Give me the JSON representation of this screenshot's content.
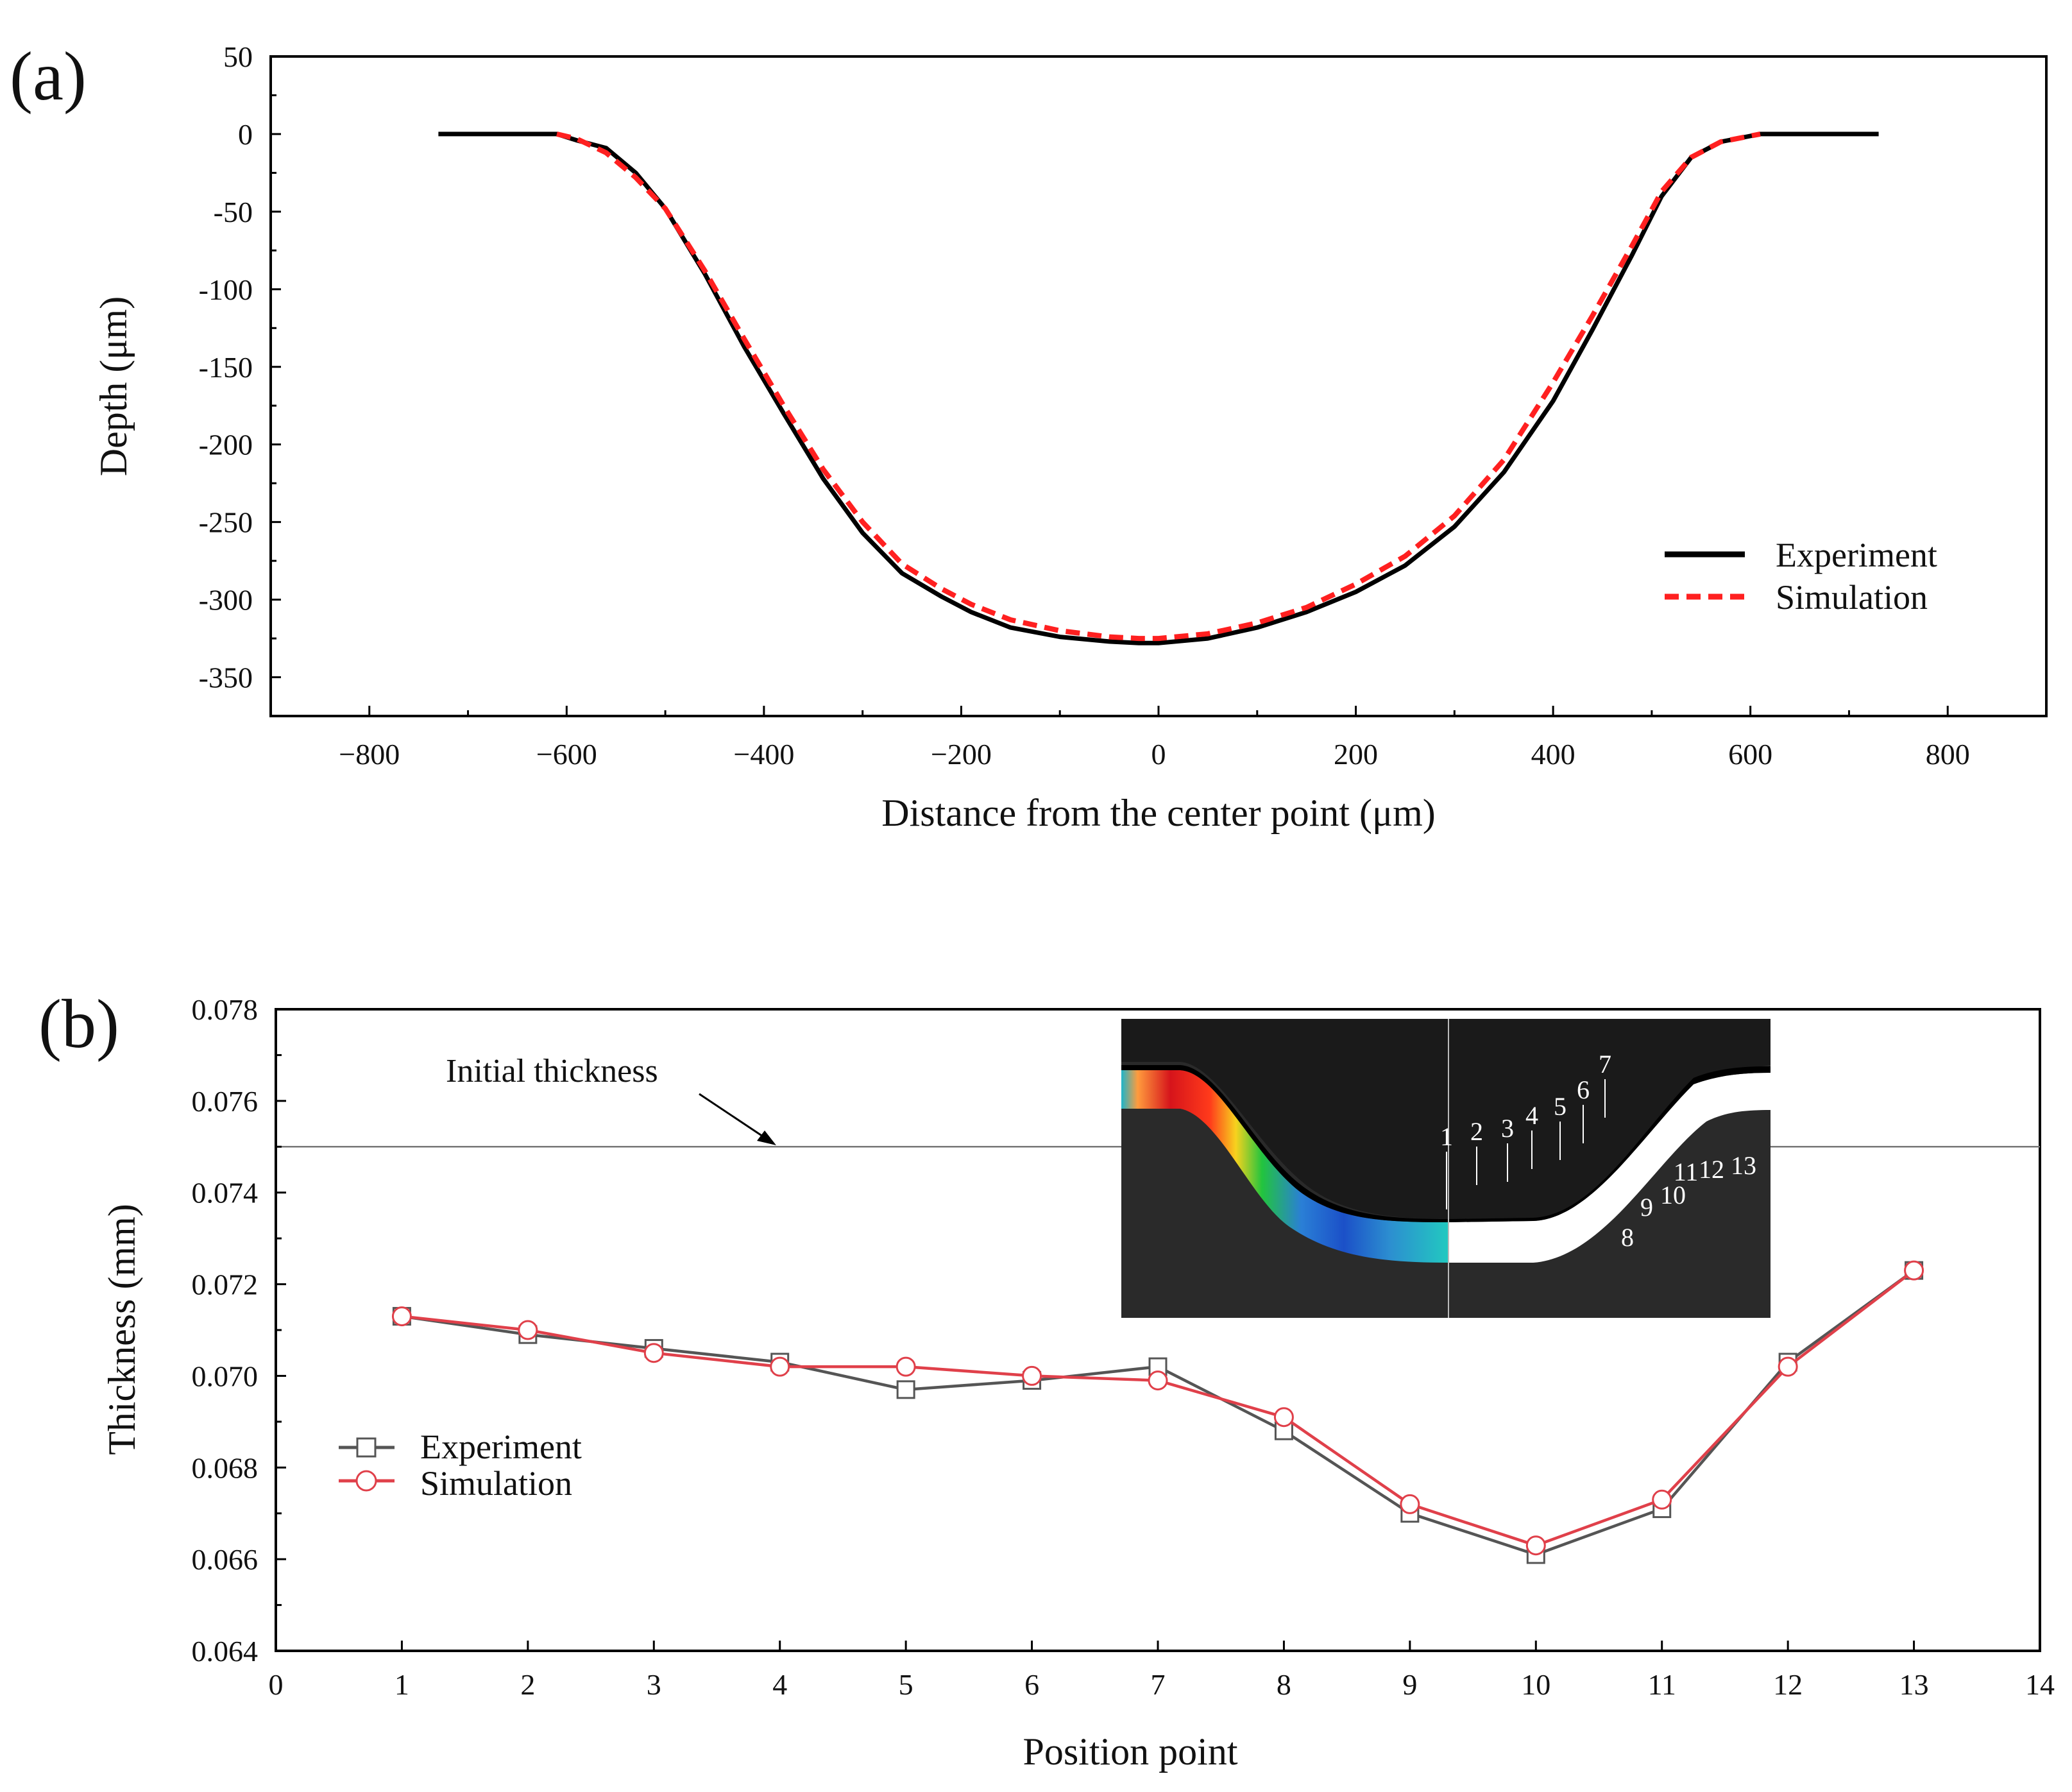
{
  "panel_a": {
    "label": "(a)",
    "xlabel": "Distance from the center point (μm)",
    "ylabel": "Depth (μm)",
    "legend": [
      "Experiment",
      "Simulation"
    ]
  },
  "panel_b": {
    "label": "(b)",
    "xlabel": "Position point",
    "ylabel": "Thickness (mm)",
    "legend": [
      "Experiment",
      "Simulation"
    ],
    "annotation": "Initial thickness",
    "inset_labels": [
      "1",
      "2",
      "3",
      "4",
      "5",
      "6",
      "7",
      "8",
      "9",
      "10",
      "11",
      "12",
      "13"
    ]
  },
  "chart_data": [
    {
      "type": "line",
      "xlabel": "Distance from the center point (μm)",
      "ylabel": "Depth (μm)",
      "xlim": [
        -900,
        900
      ],
      "ylim": [
        -375,
        50
      ],
      "x_ticks": [
        -800,
        -600,
        -400,
        -200,
        0,
        200,
        400,
        600,
        800
      ],
      "y_ticks": [
        50,
        0,
        -50,
        -100,
        -150,
        -200,
        -250,
        -300,
        -350
      ],
      "grid": false,
      "legend_position": "bottom-right",
      "series": [
        {
          "name": "Experiment",
          "color": "#000000",
          "style": "solid",
          "x": [
            -730,
            -650,
            -610,
            -590,
            -560,
            -530,
            -500,
            -460,
            -420,
            -380,
            -340,
            -300,
            -260,
            -220,
            -190,
            -150,
            -100,
            -50,
            -20,
            0,
            50,
            100,
            150,
            200,
            250,
            300,
            350,
            400,
            440,
            480,
            510,
            540,
            570,
            610,
            650,
            700,
            730
          ],
          "y": [
            0,
            0,
            0,
            -4,
            -9,
            -25,
            -48,
            -90,
            -137,
            -180,
            -222,
            -257,
            -283,
            -298,
            -308,
            -318,
            -324,
            -327,
            -328,
            -328,
            -325,
            -318,
            -308,
            -295,
            -278,
            -253,
            -218,
            -172,
            -126,
            -78,
            -40,
            -15,
            -5,
            0,
            0,
            0,
            0
          ]
        },
        {
          "name": "Simulation",
          "color": "#ff2020",
          "style": "dashed",
          "x": [
            -610,
            -590,
            -560,
            -530,
            -500,
            -460,
            -420,
            -380,
            -340,
            -300,
            -260,
            -220,
            -190,
            -150,
            -100,
            -50,
            -20,
            0,
            50,
            100,
            150,
            200,
            250,
            300,
            350,
            400,
            440,
            480,
            510,
            540,
            570,
            610
          ],
          "y": [
            0,
            -3,
            -12,
            -28,
            -48,
            -88,
            -132,
            -175,
            -216,
            -250,
            -277,
            -293,
            -303,
            -313,
            -320,
            -324,
            -325,
            -325,
            -322,
            -315,
            -305,
            -290,
            -272,
            -246,
            -210,
            -160,
            -117,
            -72,
            -37,
            -15,
            -5,
            0
          ]
        }
      ]
    },
    {
      "type": "line",
      "xlabel": "Position point",
      "ylabel": "Thickness (mm)",
      "xlim": [
        0,
        14
      ],
      "ylim": [
        0.064,
        0.078
      ],
      "x_ticks": [
        0,
        1,
        2,
        3,
        4,
        5,
        6,
        7,
        8,
        9,
        10,
        11,
        12,
        13,
        14
      ],
      "y_ticks": [
        0.064,
        0.066,
        0.068,
        0.07,
        0.072,
        0.074,
        0.076,
        0.078
      ],
      "grid": false,
      "legend_position": "left",
      "reference_line": {
        "y": 0.075,
        "label": "Initial thickness"
      },
      "series": [
        {
          "name": "Experiment",
          "color": "#555555",
          "marker": "square",
          "x": [
            1,
            2,
            3,
            4,
            5,
            6,
            7,
            8,
            9,
            10,
            11,
            12,
            13
          ],
          "y": [
            0.0713,
            0.0709,
            0.0706,
            0.0703,
            0.0697,
            0.0699,
            0.0702,
            0.0688,
            0.067,
            0.0661,
            0.0671,
            0.0703,
            0.0723
          ]
        },
        {
          "name": "Simulation",
          "color": "#e0404a",
          "marker": "circle",
          "x": [
            1,
            2,
            3,
            4,
            5,
            6,
            7,
            8,
            9,
            10,
            11,
            12,
            13
          ],
          "y": [
            0.0713,
            0.071,
            0.0705,
            0.0702,
            0.0702,
            0.07,
            0.0699,
            0.0691,
            0.0672,
            0.0663,
            0.0673,
            0.0702,
            0.0723
          ]
        }
      ]
    }
  ]
}
